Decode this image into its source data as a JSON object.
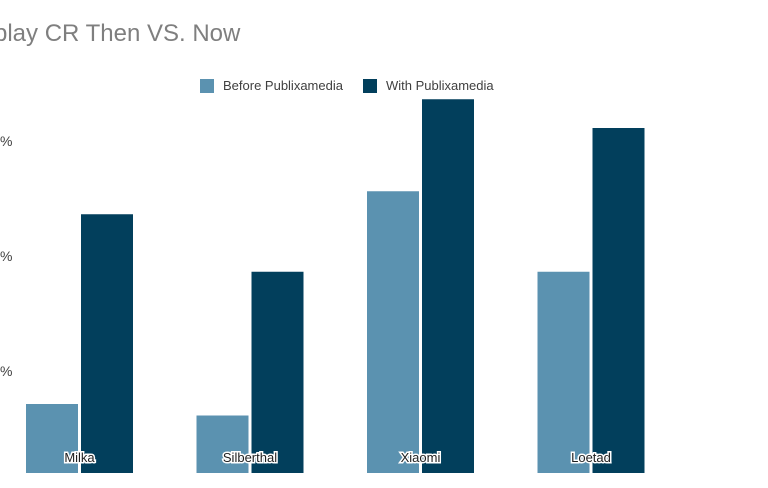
{
  "chart_data": {
    "type": "bar",
    "title": "splay CR Then VS. Now",
    "categories": [
      "Milka",
      "Silberthal",
      "Xiaomi",
      "Loetad"
    ],
    "series": [
      {
        "name": "Before Publixamedia",
        "values": [
          0.6,
          0.5,
          2.45,
          1.75
        ],
        "color": "#5b92b0"
      },
      {
        "name": "With Publixamedia",
        "values": [
          2.25,
          1.75,
          3.25,
          3.0
        ],
        "color": "#023f5c"
      }
    ],
    "y_tick_labels": [
      "%",
      "%",
      "%"
    ],
    "ylim": [
      0,
      3.3
    ],
    "grid": false,
    "legend_position": "top"
  }
}
